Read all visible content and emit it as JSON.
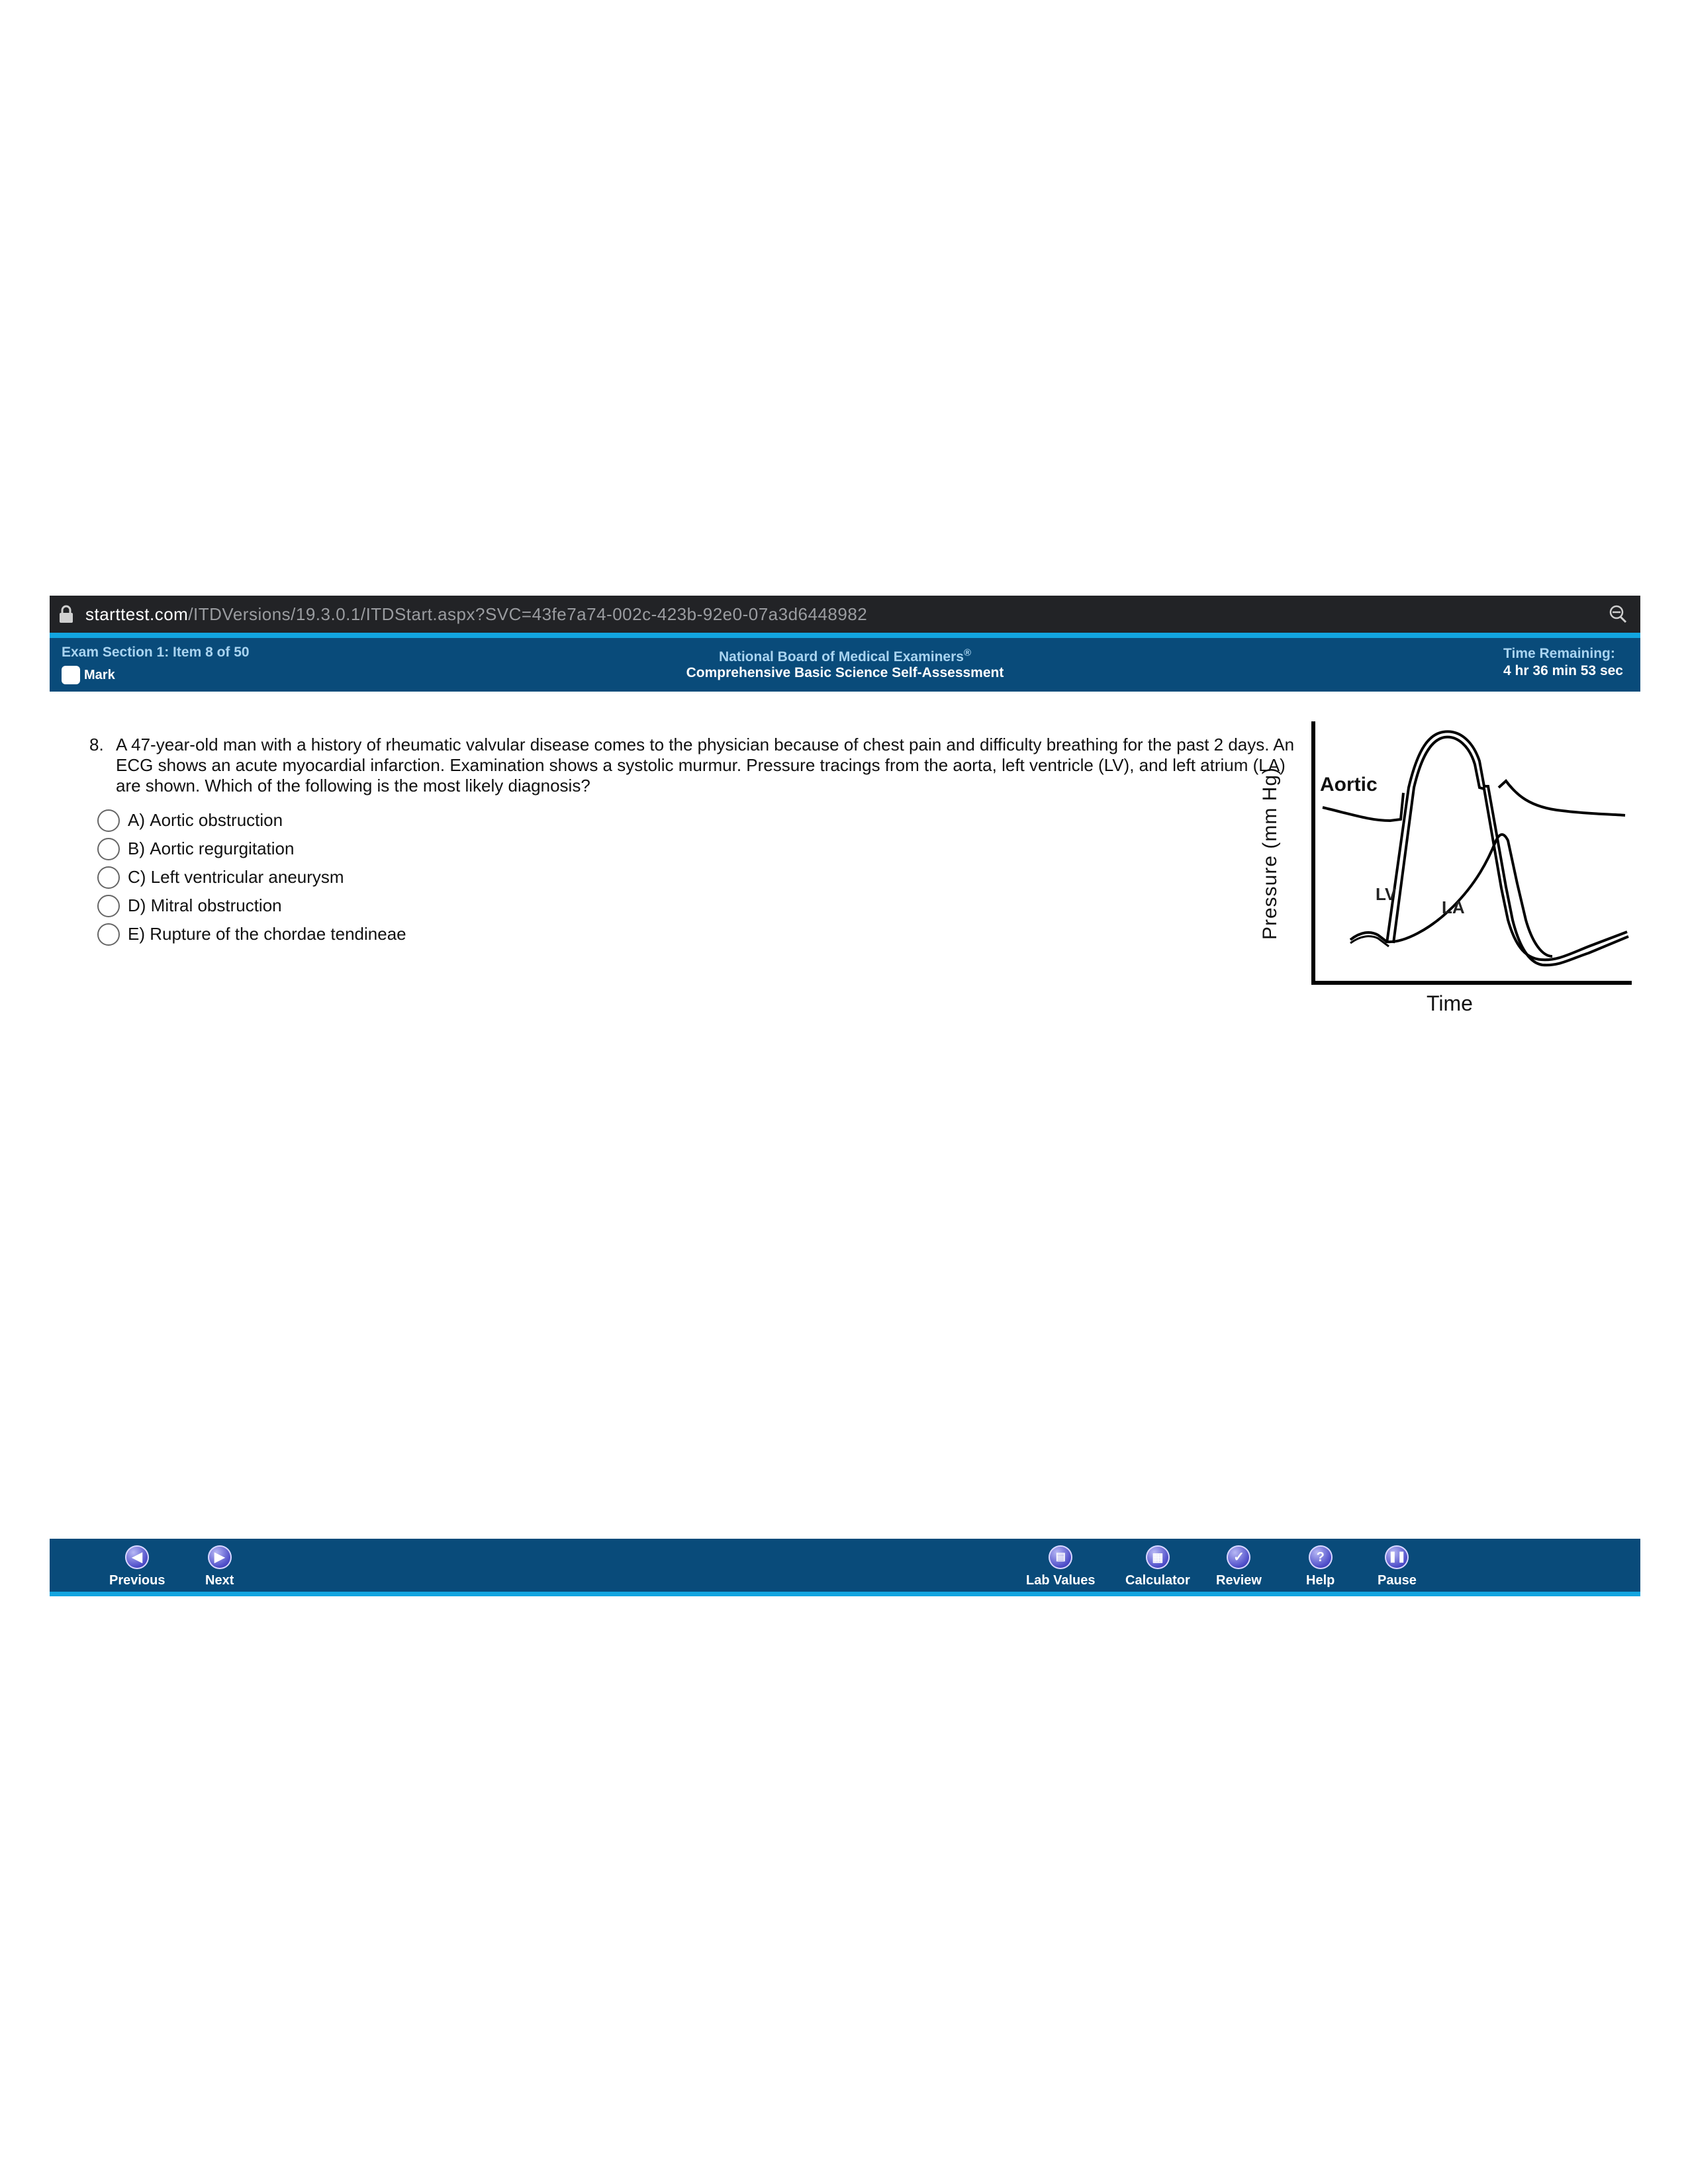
{
  "browser": {
    "url_host": "starttest.com",
    "url_path": "/ITDVersions/19.3.0.1/ITDStart.aspx?SVC=43fe7a74-002c-423b-92e0-07a3d6448982",
    "icons": [
      "lock-icon",
      "zoom-icon"
    ]
  },
  "header": {
    "item_label": "Exam Section 1: Item 8 of 50",
    "mark_label": "Mark",
    "org": "National Board of Medical Examiners",
    "org_reg": "®",
    "test_name": "Comprehensive Basic Science Self-Assessment",
    "time_label": "Time Remaining:",
    "time_value": "4 hr 36 min 53 sec"
  },
  "question": {
    "number": "8.",
    "stem": "A 47-year-old man with a history of rheumatic valvular disease comes to the physician because of chest pain and difficulty breathing for the past 2 days. An ECG shows an acute myocardial infarction. Examination shows a systolic murmur. Pressure tracings from the aorta, left ventricle (LV), and left atrium (LA) are shown. Which of the following is the most likely diagnosis?",
    "choices": [
      {
        "letter": "A)",
        "text": "Aortic obstruction"
      },
      {
        "letter": "B)",
        "text": "Aortic regurgitation"
      },
      {
        "letter": "C)",
        "text": "Left ventricular aneurysm"
      },
      {
        "letter": "D)",
        "text": "Mitral obstruction"
      },
      {
        "letter": "E)",
        "text": "Rupture of the chordae tendineae"
      }
    ]
  },
  "figure": {
    "ylabel": "Pressure (mm Hg)",
    "xlabel": "Time",
    "label_aortic": "Aortic",
    "label_lv": "LV",
    "label_la": "LA"
  },
  "footer": {
    "previous": "Previous",
    "next": "Next",
    "lab_values": "Lab Values",
    "calculator": "Calculator",
    "review": "Review",
    "help": "Help",
    "pause": "Pause"
  },
  "colors": {
    "header_bg": "#094b7a",
    "accent_line": "#12a5e0",
    "url_bar_bg": "#222326",
    "header_label": "#a9d4f0",
    "nav_icon": "#4d4cc8"
  }
}
